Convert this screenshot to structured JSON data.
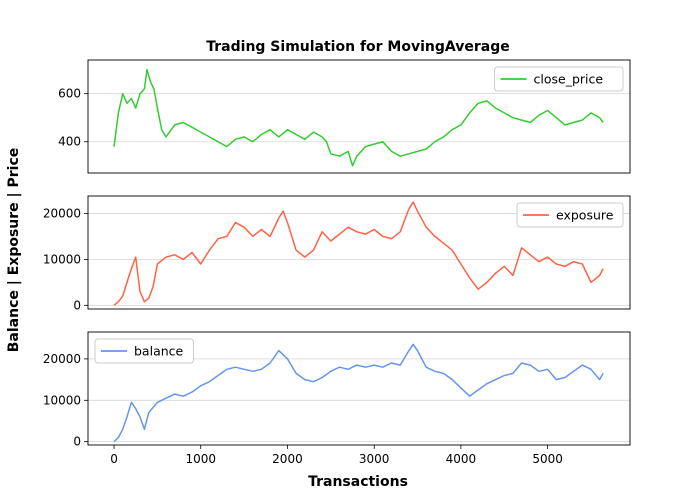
{
  "chart_data": {
    "type": "line",
    "title": "Trading Simulation for MovingAverage",
    "xlabel": "Transactions",
    "ylabel": "Balance | Exposure | Price",
    "xlim": [
      -300,
      5950
    ],
    "x_ticks": [
      0,
      1000,
      2000,
      3000,
      4000,
      5000
    ],
    "panels": [
      {
        "name": "close_price",
        "color": "#33cc33",
        "legend": "top-right",
        "grid": true,
        "ylim": [
          270,
          740
        ],
        "y_ticks": [
          400,
          600
        ],
        "x": [
          0,
          50,
          100,
          150,
          200,
          250,
          300,
          350,
          380,
          420,
          460,
          500,
          550,
          600,
          700,
          800,
          900,
          1000,
          1100,
          1200,
          1300,
          1400,
          1500,
          1600,
          1700,
          1800,
          1900,
          2000,
          2100,
          2200,
          2300,
          2400,
          2450,
          2500,
          2600,
          2700,
          2750,
          2800,
          2900,
          3000,
          3100,
          3200,
          3300,
          3400,
          3500,
          3600,
          3700,
          3800,
          3900,
          4000,
          4100,
          4200,
          4300,
          4400,
          4500,
          4600,
          4700,
          4800,
          4900,
          5000,
          5100,
          5200,
          5300,
          5400,
          5500,
          5600,
          5640
        ],
        "values": [
          380,
          520,
          600,
          560,
          580,
          540,
          600,
          620,
          700,
          650,
          620,
          540,
          450,
          420,
          470,
          480,
          460,
          440,
          420,
          400,
          380,
          410,
          420,
          400,
          430,
          450,
          420,
          450,
          430,
          410,
          440,
          420,
          400,
          350,
          340,
          360,
          300,
          340,
          380,
          390,
          400,
          360,
          340,
          350,
          360,
          370,
          400,
          420,
          450,
          470,
          520,
          560,
          570,
          540,
          520,
          500,
          490,
          480,
          510,
          530,
          500,
          470,
          480,
          490,
          520,
          500,
          480
        ]
      },
      {
        "name": "exposure",
        "color": "#ff6347",
        "legend": "top-right",
        "grid": true,
        "ylim": [
          -800,
          23800
        ],
        "y_ticks": [
          0,
          10000,
          20000
        ],
        "x": [
          0,
          50,
          100,
          150,
          200,
          250,
          300,
          350,
          400,
          450,
          500,
          600,
          700,
          800,
          900,
          1000,
          1100,
          1200,
          1300,
          1400,
          1500,
          1600,
          1700,
          1800,
          1900,
          1950,
          2000,
          2100,
          2200,
          2300,
          2400,
          2500,
          2600,
          2700,
          2800,
          2900,
          3000,
          3100,
          3200,
          3300,
          3400,
          3450,
          3500,
          3600,
          3700,
          3800,
          3900,
          4000,
          4100,
          4200,
          4300,
          4400,
          4500,
          4600,
          4700,
          4800,
          4900,
          5000,
          5100,
          5200,
          5300,
          5400,
          5500,
          5600,
          5640
        ],
        "values": [
          0,
          800,
          2000,
          5000,
          8000,
          10500,
          3000,
          800,
          1500,
          4000,
          9000,
          10500,
          11000,
          10000,
          11500,
          9000,
          12000,
          14500,
          15000,
          18000,
          17000,
          15000,
          16500,
          15000,
          19000,
          20500,
          18000,
          12000,
          10500,
          12000,
          16000,
          14000,
          15500,
          17000,
          16000,
          15500,
          16500,
          15000,
          14500,
          16000,
          21000,
          22500,
          20500,
          17000,
          15000,
          13500,
          12000,
          9000,
          6000,
          3500,
          5000,
          7000,
          8500,
          6500,
          12500,
          11000,
          9500,
          10500,
          9000,
          8500,
          9500,
          9000,
          5000,
          6500,
          8000
        ]
      },
      {
        "name": "balance",
        "color": "#6495ed",
        "legend": "top-left",
        "grid": true,
        "ylim": [
          -800,
          26500
        ],
        "y_ticks": [
          0,
          10000,
          20000
        ],
        "x": [
          0,
          50,
          100,
          150,
          200,
          250,
          300,
          350,
          400,
          500,
          600,
          700,
          800,
          900,
          1000,
          1100,
          1200,
          1300,
          1400,
          1500,
          1600,
          1700,
          1800,
          1900,
          2000,
          2100,
          2200,
          2300,
          2400,
          2500,
          2600,
          2700,
          2800,
          2900,
          3000,
          3100,
          3200,
          3300,
          3400,
          3450,
          3500,
          3600,
          3700,
          3800,
          3900,
          4000,
          4100,
          4200,
          4300,
          4400,
          4500,
          4600,
          4700,
          4800,
          4900,
          5000,
          5100,
          5200,
          5300,
          5400,
          5500,
          5600,
          5640
        ],
        "values": [
          0,
          1000,
          3000,
          6000,
          9500,
          8000,
          6000,
          3000,
          7000,
          9500,
          10500,
          11500,
          11000,
          12000,
          13500,
          14500,
          16000,
          17500,
          18000,
          17500,
          17000,
          17500,
          19000,
          22000,
          20000,
          16500,
          15000,
          14500,
          15500,
          17000,
          18000,
          17500,
          18500,
          18000,
          18500,
          18000,
          19000,
          18500,
          22000,
          23500,
          22000,
          18000,
          17000,
          16500,
          15000,
          13000,
          11000,
          12500,
          14000,
          15000,
          16000,
          16500,
          19000,
          18500,
          17000,
          17500,
          15000,
          15500,
          17000,
          18500,
          17500,
          15000,
          16500
        ]
      }
    ]
  }
}
